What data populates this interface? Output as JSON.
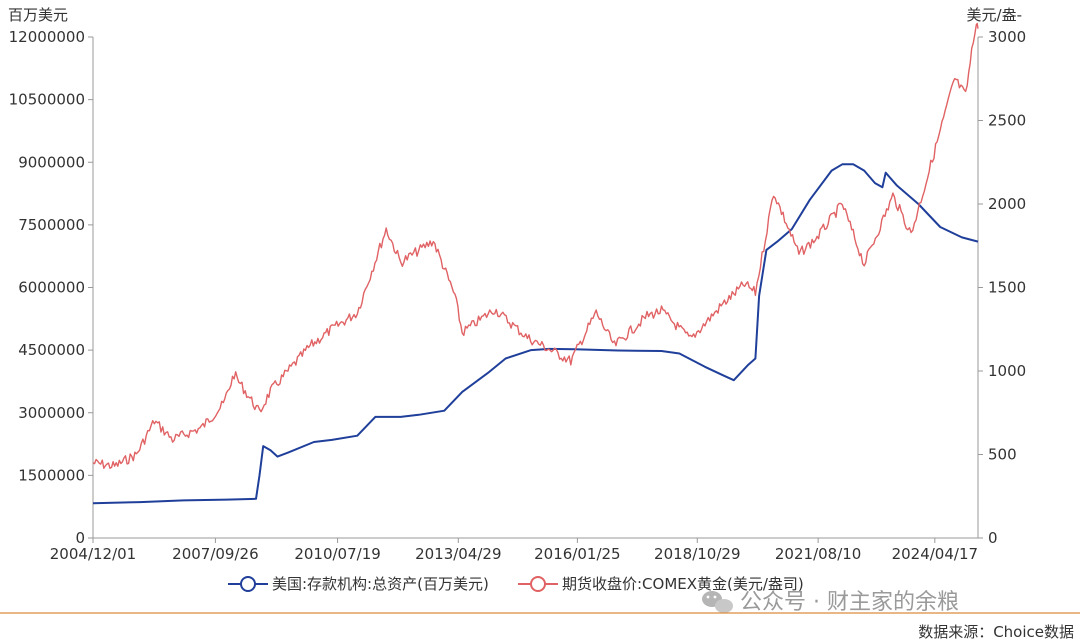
{
  "chart_data": {
    "type": "line",
    "left_axis_unit": "百万美元",
    "right_axis_unit": "美元/盎-",
    "yleft_ticks": [
      "0",
      "1500000",
      "3000000",
      "4500000",
      "6000000",
      "7500000",
      "9000000",
      "10500000",
      "12000000"
    ],
    "yright_ticks": [
      "0",
      "500",
      "1000",
      "1500",
      "2000",
      "2500",
      "3000"
    ],
    "yleft_lim": [
      0,
      12000000
    ],
    "yright_lim": [
      0,
      3000
    ],
    "x_ticks": [
      "2004/12/01",
      "2007/09/26",
      "2010/07/19",
      "2013/04/29",
      "2016/01/25",
      "2018/10/29",
      "2021/08/10",
      "2024/04/17"
    ],
    "x_lim": [
      "2004-12-01",
      "2025-04-15"
    ],
    "series": [
      {
        "name": "美国:存款机构:总资产(百万美元)",
        "axis": "left",
        "color": "#1f3f9a",
        "points": [
          [
            "2004-12-01",
            830000
          ],
          [
            "2006-01-01",
            860000
          ],
          [
            "2007-01-01",
            900000
          ],
          [
            "2008-01-01",
            920000
          ],
          [
            "2008-09-01",
            940000
          ],
          [
            "2008-10-01",
            1500000
          ],
          [
            "2008-11-01",
            2200000
          ],
          [
            "2009-01-01",
            2100000
          ],
          [
            "2009-03-01",
            1950000
          ],
          [
            "2009-06-01",
            2050000
          ],
          [
            "2010-01-01",
            2300000
          ],
          [
            "2010-06-01",
            2350000
          ],
          [
            "2011-01-01",
            2450000
          ],
          [
            "2011-06-01",
            2900000
          ],
          [
            "2012-01-01",
            2900000
          ],
          [
            "2012-06-01",
            2950000
          ],
          [
            "2013-01-01",
            3050000
          ],
          [
            "2013-06-01",
            3500000
          ],
          [
            "2014-01-01",
            3950000
          ],
          [
            "2014-06-01",
            4300000
          ],
          [
            "2015-01-01",
            4500000
          ],
          [
            "2015-06-01",
            4530000
          ],
          [
            "2016-01-01",
            4520000
          ],
          [
            "2017-01-01",
            4490000
          ],
          [
            "2018-01-01",
            4480000
          ],
          [
            "2018-06-01",
            4420000
          ],
          [
            "2019-01-01",
            4100000
          ],
          [
            "2019-06-01",
            3900000
          ],
          [
            "2019-09-01",
            3780000
          ],
          [
            "2020-01-01",
            4150000
          ],
          [
            "2020-03-01",
            4300000
          ],
          [
            "2020-04-01",
            5800000
          ],
          [
            "2020-06-01",
            6900000
          ],
          [
            "2020-09-01",
            7100000
          ],
          [
            "2021-01-01",
            7400000
          ],
          [
            "2021-06-01",
            8100000
          ],
          [
            "2021-12-01",
            8800000
          ],
          [
            "2022-03-01",
            8950000
          ],
          [
            "2022-06-01",
            8950000
          ],
          [
            "2022-09-01",
            8800000
          ],
          [
            "2022-12-01",
            8500000
          ],
          [
            "2023-02-01",
            8400000
          ],
          [
            "2023-03-01",
            8750000
          ],
          [
            "2023-06-01",
            8450000
          ],
          [
            "2023-12-01",
            8000000
          ],
          [
            "2024-06-01",
            7450000
          ],
          [
            "2024-12-01",
            7200000
          ],
          [
            "2025-04-15",
            7100000
          ]
        ]
      },
      {
        "name": "期货收盘价:COMEX黄金(美元/盎司)",
        "axis": "right",
        "color": "#e06264",
        "points": [
          [
            "2004-12-01",
            450
          ],
          [
            "2005-06-01",
            430
          ],
          [
            "2005-12-01",
            500
          ],
          [
            "2006-05-01",
            700
          ],
          [
            "2006-10-01",
            590
          ],
          [
            "2007-06-01",
            660
          ],
          [
            "2007-12-01",
            800
          ],
          [
            "2008-03-01",
            980
          ],
          [
            "2008-10-01",
            750
          ],
          [
            "2009-01-01",
            880
          ],
          [
            "2009-12-01",
            1150
          ],
          [
            "2010-06-01",
            1250
          ],
          [
            "2011-01-01",
            1350
          ],
          [
            "2011-09-01",
            1850
          ],
          [
            "2012-01-01",
            1650
          ],
          [
            "2012-10-01",
            1780
          ],
          [
            "2013-04-01",
            1450
          ],
          [
            "2013-06-01",
            1230
          ],
          [
            "2014-03-01",
            1370
          ],
          [
            "2014-12-01",
            1200
          ],
          [
            "2015-12-01",
            1060
          ],
          [
            "2016-07-01",
            1350
          ],
          [
            "2016-12-01",
            1150
          ],
          [
            "2017-09-01",
            1330
          ],
          [
            "2018-01-01",
            1360
          ],
          [
            "2018-09-01",
            1190
          ],
          [
            "2019-06-01",
            1400
          ],
          [
            "2019-12-01",
            1520
          ],
          [
            "2020-03-01",
            1470
          ],
          [
            "2020-08-01",
            2070
          ],
          [
            "2021-03-01",
            1700
          ],
          [
            "2021-08-01",
            1800
          ],
          [
            "2022-03-01",
            2000
          ],
          [
            "2022-09-01",
            1640
          ],
          [
            "2023-05-01",
            2050
          ],
          [
            "2023-10-01",
            1820
          ],
          [
            "2024-03-01",
            2200
          ],
          [
            "2024-10-01",
            2750
          ],
          [
            "2025-01-01",
            2650
          ],
          [
            "2025-04-01",
            3100
          ],
          [
            "2025-04-15",
            3050
          ]
        ]
      }
    ],
    "legend_position": "bottom-center",
    "grid": false
  },
  "watermark": "公众号 · 财主家的余粮",
  "source": "数据来源：Choice数据"
}
